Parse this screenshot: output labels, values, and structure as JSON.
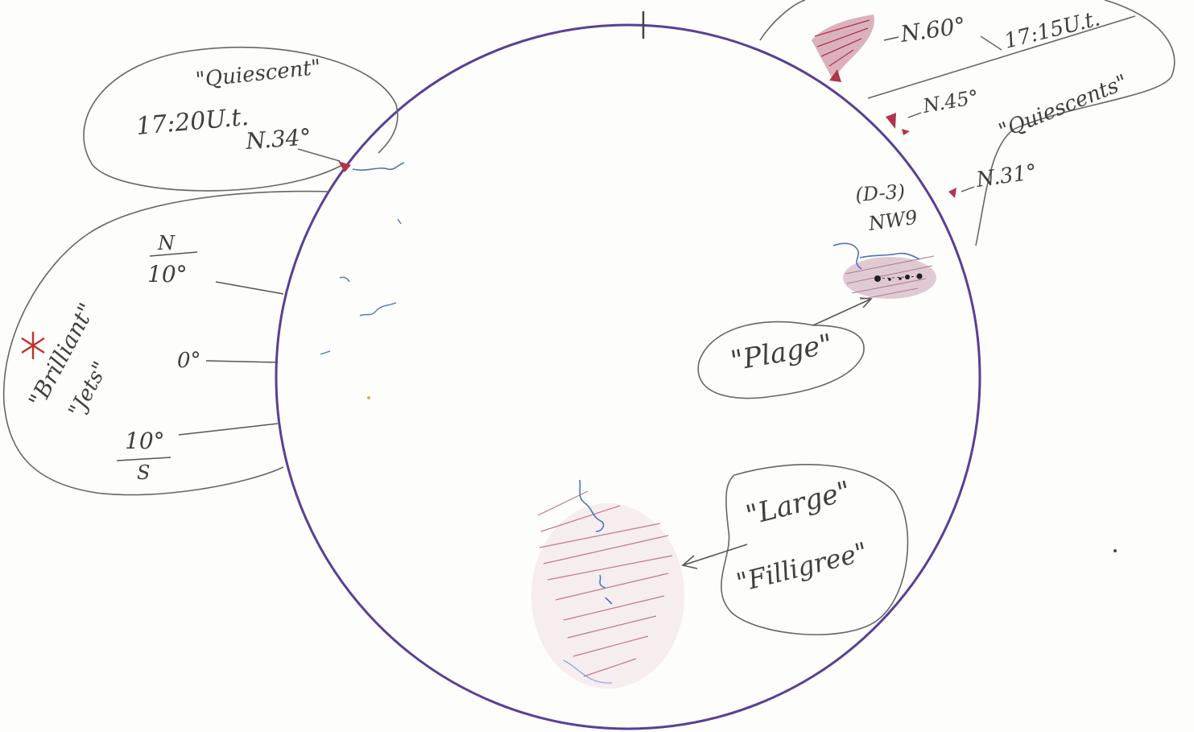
{
  "colors": {
    "disk": "#5a3f94",
    "pencil": "#5e5e5e",
    "prominence": "#b0344c",
    "filament": "#4f73b8",
    "plage": "#b07a93",
    "sunspot": "#1f1f1f"
  },
  "annotations": {
    "quiescent_left": "\"Quiescent\"",
    "time_left": "17:20U.t.",
    "lat_n34": "N.34°",
    "lat_n60": "N.60°",
    "time_right": "17:15U.t.",
    "lat_n45": "N.45°",
    "quiescent_right": "\"Quiescents\"",
    "lat_n31": "N.31°",
    "region_code": "(D-3)",
    "region_class": "NW9",
    "plage": "\"Plage\"",
    "large": "\"Large\"",
    "filligree": "\"Filligree\"",
    "brilliant": "\"Brilliant\"",
    "jets": "\"Jets\"",
    "scale_n": "N",
    "scale_n10": "10°",
    "scale_zero": "0°",
    "scale_s10": "10°",
    "scale_s": "S"
  }
}
